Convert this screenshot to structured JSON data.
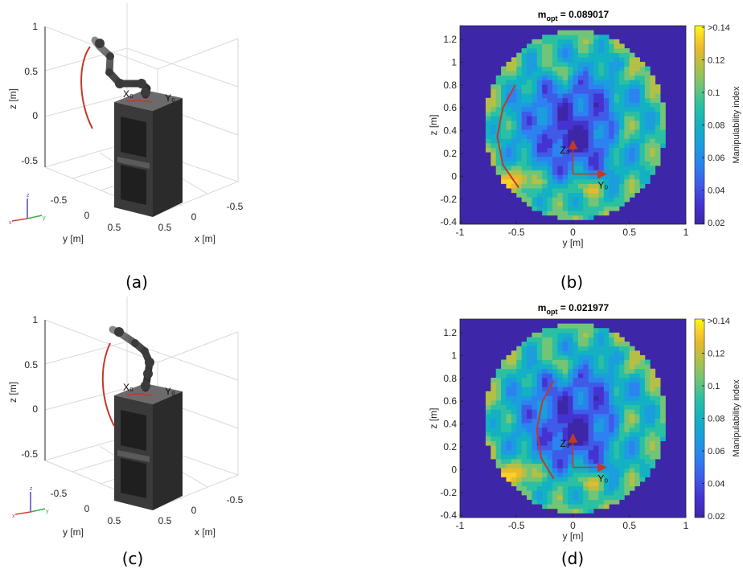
{
  "captions": [
    "(a)",
    "(b)",
    "(c)",
    "(d)"
  ],
  "colors": {
    "cmap": [
      "#3e26a8",
      "#4433d0",
      "#3f5be8",
      "#2c82f0",
      "#1c9ddd",
      "#13b1c3",
      "#2cc0a2",
      "#72c577",
      "#b4c045",
      "#e7b92e",
      "#fbd027",
      "#f9fb0e"
    ],
    "trajectory": "#c0392b",
    "robot": "#555555"
  },
  "robot_plots": [
    {
      "id": "a",
      "zlabel": "z [m]",
      "ylabel": "y [m]",
      "xlabel": "x [m]",
      "zticks": [
        "1",
        "0.5",
        "0",
        "-0.5"
      ],
      "yticks": [
        "-0.5",
        "0",
        "0.5"
      ],
      "xticks": [
        "-0.5",
        "0",
        "0.5"
      ],
      "frame_labels": [
        "X₀",
        "Y₀"
      ],
      "triad": [
        "z",
        "x",
        "y"
      ]
    },
    {
      "id": "c",
      "zlabel": "z [m]",
      "ylabel": "y [m]",
      "xlabel": "x [m]",
      "zticks": [
        "1",
        "0.5",
        "0",
        "-0.5"
      ],
      "yticks": [
        "-0.5",
        "0",
        "0.5"
      ],
      "xticks": [
        "-0.5",
        "0",
        "0.5"
      ],
      "frame_labels": [
        "X₀",
        "Y₀"
      ],
      "triad": [
        "z",
        "x",
        "y"
      ]
    }
  ],
  "chart_data": [
    {
      "type": "heatmap",
      "title_main": "m",
      "title_sub": "opt",
      "title_value": " = 0.089017",
      "xlabel": "y [m]",
      "ylabel": "z [m]",
      "xlim": [
        -1,
        1
      ],
      "ylim": [
        -0.42,
        1.32
      ],
      "xticks": [
        "-1",
        "-0.5",
        "0",
        "0.5",
        "1"
      ],
      "yticks": [
        "1.2",
        "1",
        "0.8",
        "0.6",
        "0.4",
        "0.2",
        "0",
        "-0.2",
        "-0.4"
      ],
      "colorbar_label": "Manipulability index",
      "colorbar_ticks": [
        ">0.14",
        "0.12",
        "0.1",
        "0.08",
        "0.06",
        "0.04",
        "0.02"
      ],
      "clim": [
        0.02,
        0.14
      ],
      "frame_labels": [
        "Z₀",
        "Y₀"
      ],
      "trajectory": {
        "x": [
          -0.51,
          -0.62,
          -0.67,
          -0.62,
          -0.48
        ],
        "y": [
          0.8,
          0.6,
          0.35,
          0.1,
          -0.1
        ]
      }
    },
    {
      "type": "heatmap",
      "title_main": "m",
      "title_sub": "opt",
      "title_value": " = 0.021977",
      "xlabel": "y [m]",
      "ylabel": "z [m]",
      "xlim": [
        -1,
        1
      ],
      "ylim": [
        -0.42,
        1.32
      ],
      "xticks": [
        "-1",
        "-0.5",
        "0",
        "0.5",
        "1"
      ],
      "yticks": [
        "1.2",
        "1",
        "0.8",
        "0.6",
        "0.4",
        "0.2",
        "0",
        "-0.2",
        "-0.4"
      ],
      "colorbar_label": "Manipulability index",
      "colorbar_ticks": [
        ">0.14",
        "0.12",
        "0.1",
        "0.08",
        "0.06",
        "0.04",
        "0.02"
      ],
      "clim": [
        0.02,
        0.14
      ],
      "frame_labels": [
        "Z₀",
        "Y₀"
      ],
      "trajectory": {
        "x": [
          -0.17,
          -0.27,
          -0.32,
          -0.28,
          -0.17
        ],
        "y": [
          0.78,
          0.6,
          0.35,
          0.1,
          -0.08
        ]
      }
    }
  ]
}
